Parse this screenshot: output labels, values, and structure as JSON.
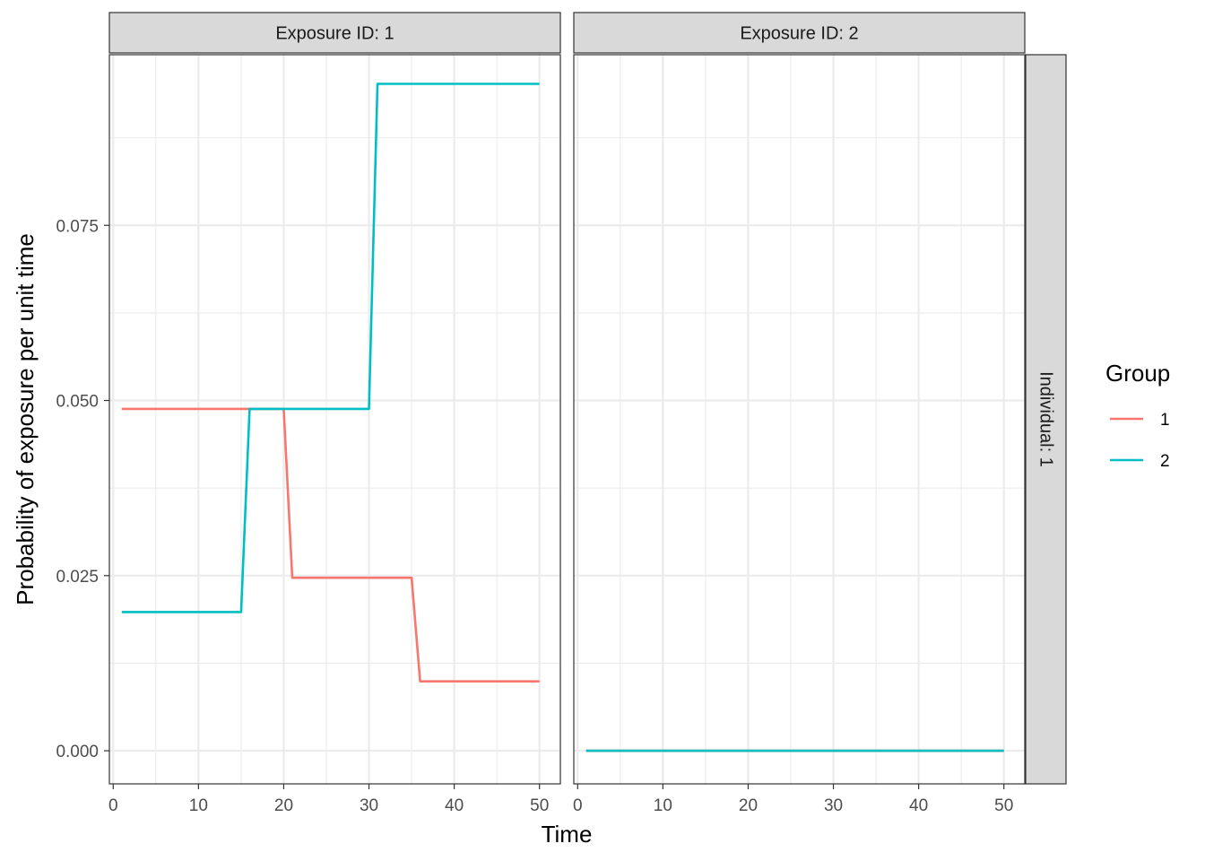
{
  "chart_data": {
    "type": "line",
    "xlabel": "Time",
    "ylabel": "Probability of exposure per unit time",
    "xlim": [
      -0.45,
      52.45
    ],
    "ylim": [
      -0.00473,
      0.09936
    ],
    "x_ticks": [
      0,
      10,
      20,
      30,
      40,
      50
    ],
    "x_tick_labels": [
      "0",
      "10",
      "20",
      "30",
      "40",
      "50"
    ],
    "x_minor_ticks": [
      5,
      15,
      25,
      35,
      45
    ],
    "y_ticks": [
      0.0,
      0.025,
      0.05,
      0.075
    ],
    "y_tick_labels": [
      "0.000",
      "0.025",
      "0.050",
      "0.075"
    ],
    "y_minor_ticks": [
      0.0125,
      0.0375,
      0.0625,
      0.0875
    ],
    "grid": true,
    "legend": {
      "title": "Group",
      "placement": "right"
    },
    "row_strip": "Individual: 1",
    "panels": [
      {
        "strip": "Exposure ID: 1",
        "series": [
          {
            "name": "1",
            "color": "#F8766D",
            "x": [
              1,
              20,
              21,
              35,
              36,
              50
            ],
            "y": [
              0.0488,
              0.0488,
              0.0247,
              0.0247,
              0.0099,
              0.0099
            ]
          },
          {
            "name": "2",
            "color": "#00BFC4",
            "x": [
              1,
              15,
              16,
              30,
              31,
              50
            ],
            "y": [
              0.0198,
              0.0198,
              0.0488,
              0.0488,
              0.0952,
              0.0952
            ]
          }
        ]
      },
      {
        "strip": "Exposure ID: 2",
        "series": [
          {
            "name": "1",
            "color": "#F8766D",
            "x": [
              1,
              50
            ],
            "y": [
              0.0,
              0.0
            ]
          },
          {
            "name": "2",
            "color": "#00BFC4",
            "x": [
              1,
              50
            ],
            "y": [
              0.0,
              0.0
            ]
          }
        ]
      }
    ]
  }
}
